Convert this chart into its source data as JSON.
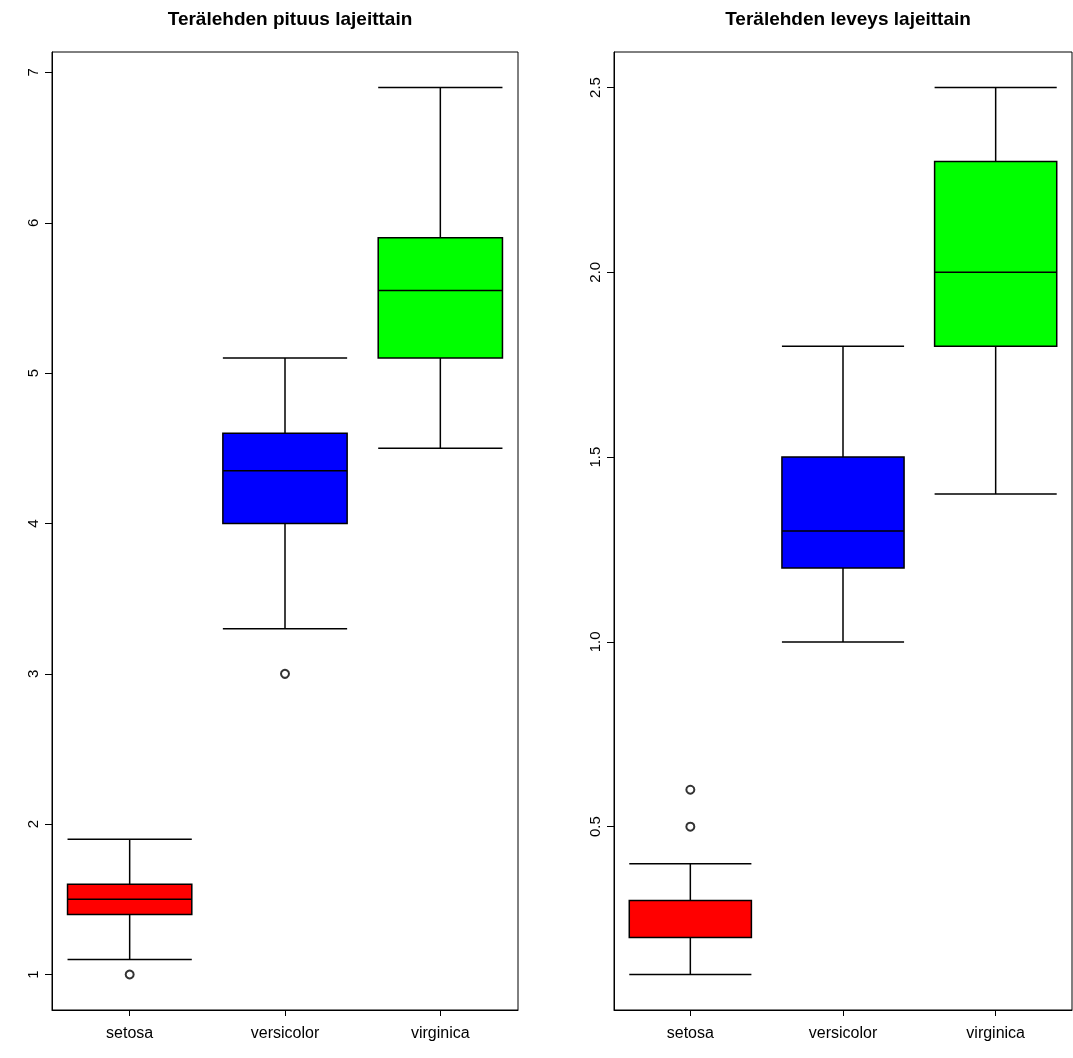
{
  "chart_data": [
    {
      "type": "box",
      "title": "Terälehden pituus lajeittain",
      "categories": [
        "setosa",
        "versicolor",
        "virginica"
      ],
      "colors": [
        "#ff0000",
        "#0000ff",
        "#00ff00"
      ],
      "boxes": [
        {
          "low": 1.1,
          "q1": 1.4,
          "median": 1.5,
          "q3": 1.6,
          "high": 1.9,
          "outliers": [
            1.0
          ]
        },
        {
          "low": 3.3,
          "q1": 4.0,
          "median": 4.35,
          "q3": 4.6,
          "high": 5.1,
          "outliers": [
            3.0
          ]
        },
        {
          "low": 4.5,
          "q1": 5.1,
          "median": 5.55,
          "q3": 5.9,
          "high": 6.9
        }
      ],
      "ylim": [
        0.764,
        7.136
      ],
      "yticks": [
        1,
        2,
        3,
        4,
        5,
        6,
        7
      ]
    },
    {
      "type": "box",
      "title": "Terälehden leveys lajeittain",
      "categories": [
        "setosa",
        "versicolor",
        "virginica"
      ],
      "colors": [
        "#ff0000",
        "#0000ff",
        "#00ff00"
      ],
      "boxes": [
        {
          "low": 0.1,
          "q1": 0.2,
          "median": 0.2,
          "q3": 0.3,
          "high": 0.4,
          "outliers": [
            0.5,
            0.6
          ]
        },
        {
          "low": 1.0,
          "q1": 1.2,
          "median": 1.3,
          "q3": 1.5,
          "high": 1.8
        },
        {
          "low": 1.4,
          "q1": 1.8,
          "median": 2.0,
          "q3": 2.3,
          "high": 2.5
        }
      ],
      "ylim": [
        0.004,
        2.596
      ],
      "yticks": [
        0.5,
        {
          "value": 1,
          "label": "1.0"
        },
        1.5,
        {
          "value": 2,
          "label": "2.0"
        },
        2.5
      ]
    }
  ]
}
